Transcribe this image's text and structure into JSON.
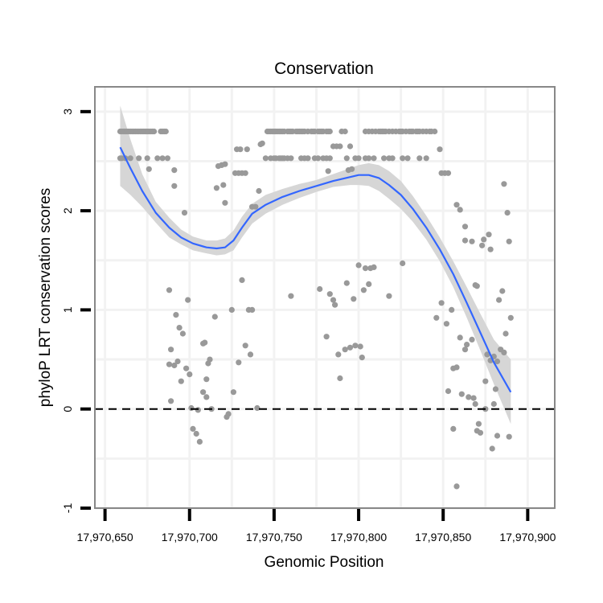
{
  "chart_data": {
    "type": "scatter",
    "title": "Conservation",
    "xlabel": "Genomic Position",
    "ylabel": "phyloP LRT conservation scores",
    "xlim": [
      17970644,
      17970916
    ],
    "ylim": [
      -1,
      3.25
    ],
    "x_ticks": [
      17970650,
      17970700,
      17970750,
      17970800,
      17970850,
      17970900
    ],
    "x_tick_labels": [
      "17,970,650",
      "17,970,700",
      "17,970,750",
      "17,970,800",
      "17,970,850",
      "17,970,900"
    ],
    "y_ticks": [
      -1,
      0,
      1,
      2,
      3
    ],
    "y_tick_labels": [
      "-1",
      "0",
      "1",
      "2",
      "3"
    ],
    "reference_line": {
      "y": 0,
      "style": "dashed"
    },
    "colors": {
      "points": "#999999",
      "smooth": "#3366ff",
      "ribbon": "#d6d6d6",
      "panel_border": "#888888",
      "grid": "#f2f2f2"
    },
    "points": [
      [
        17970659,
        2.8
      ],
      [
        17970660,
        2.8
      ],
      [
        17970661,
        2.8
      ],
      [
        17970662,
        2.8
      ],
      [
        17970663,
        2.8
      ],
      [
        17970664,
        2.8
      ],
      [
        17970665,
        2.8
      ],
      [
        17970666,
        2.8
      ],
      [
        17970667,
        2.8
      ],
      [
        17970668,
        2.8
      ],
      [
        17970669,
        2.8
      ],
      [
        17970670,
        2.8
      ],
      [
        17970671,
        2.8
      ],
      [
        17970672,
        2.8
      ],
      [
        17970673,
        2.8
      ],
      [
        17970674,
        2.8
      ],
      [
        17970675,
        2.8
      ],
      [
        17970676,
        2.8
      ],
      [
        17970677,
        2.8
      ],
      [
        17970678,
        2.8
      ],
      [
        17970679,
        2.8
      ],
      [
        17970683,
        2.8
      ],
      [
        17970684,
        2.8
      ],
      [
        17970685,
        2.8
      ],
      [
        17970686,
        2.8
      ],
      [
        17970659,
        2.53
      ],
      [
        17970660,
        2.53
      ],
      [
        17970662,
        2.53
      ],
      [
        17970665,
        2.53
      ],
      [
        17970670,
        2.53
      ],
      [
        17970675,
        2.53
      ],
      [
        17970681,
        2.53
      ],
      [
        17970684,
        2.53
      ],
      [
        17970687,
        2.53
      ],
      [
        17970676,
        2.42
      ],
      [
        17970691,
        2.41
      ],
      [
        17970691,
        2.25
      ],
      [
        17970697,
        1.98
      ],
      [
        17970688,
        1.2
      ],
      [
        17970699,
        1.1
      ],
      [
        17970692,
        0.95
      ],
      [
        17970694,
        0.82
      ],
      [
        17970696,
        0.76
      ],
      [
        17970689,
        0.6
      ],
      [
        17970688,
        0.45
      ],
      [
        17970691,
        0.44
      ],
      [
        17970693,
        0.48
      ],
      [
        17970698,
        0.41
      ],
      [
        17970700,
        0.35
      ],
      [
        17970695,
        0.28
      ],
      [
        17970689,
        0.08
      ],
      [
        17970701,
        0.01
      ],
      [
        17970705,
        -0.01
      ],
      [
        17970702,
        -0.2
      ],
      [
        17970704,
        -0.25
      ],
      [
        17970706,
        -0.33
      ],
      [
        17970708,
        0.66
      ],
      [
        17970709,
        0.67
      ],
      [
        17970710,
        0.3
      ],
      [
        17970711,
        0.46
      ],
      [
        17970712,
        0.5
      ],
      [
        17970708,
        0.17
      ],
      [
        17970710,
        0.12
      ],
      [
        17970713,
        0.0
      ],
      [
        17970715,
        0.93
      ],
      [
        17970717,
        2.45
      ],
      [
        17970719,
        2.46
      ],
      [
        17970721,
        2.47
      ],
      [
        17970716,
        2.23
      ],
      [
        17970720,
        2.26
      ],
      [
        17970721,
        2.08
      ],
      [
        17970723,
        -0.05
      ],
      [
        17970722,
        -0.08
      ],
      [
        17970725,
        1.0
      ],
      [
        17970726,
        0.17
      ],
      [
        17970727,
        2.38
      ],
      [
        17970729,
        2.38
      ],
      [
        17970731,
        2.38
      ],
      [
        17970733,
        2.38
      ],
      [
        17970728,
        2.62
      ],
      [
        17970730,
        2.62
      ],
      [
        17970734,
        2.62
      ],
      [
        17970729,
        0.47
      ],
      [
        17970731,
        1.3
      ],
      [
        17970733,
        0.64
      ],
      [
        17970736,
        0.55
      ],
      [
        17970735,
        1.0
      ],
      [
        17970737,
        2.04
      ],
      [
        17970739,
        2.04
      ],
      [
        17970737,
        1.0
      ],
      [
        17970740,
        0.01
      ],
      [
        17970741,
        2.2
      ],
      [
        17970742,
        2.67
      ],
      [
        17970743,
        2.68
      ],
      [
        17970745,
        2.53
      ],
      [
        17970746,
        2.8
      ],
      [
        17970747,
        2.8
      ],
      [
        17970748,
        2.8
      ],
      [
        17970749,
        2.8
      ],
      [
        17970750,
        2.8
      ],
      [
        17970751,
        2.8
      ],
      [
        17970752,
        2.8
      ],
      [
        17970753,
        2.8
      ],
      [
        17970754,
        2.8
      ],
      [
        17970755,
        2.8
      ],
      [
        17970756,
        2.8
      ],
      [
        17970758,
        2.8
      ],
      [
        17970759,
        2.8
      ],
      [
        17970760,
        2.8
      ],
      [
        17970761,
        2.8
      ],
      [
        17970763,
        2.8
      ],
      [
        17970764,
        2.8
      ],
      [
        17970765,
        2.8
      ],
      [
        17970766,
        2.8
      ],
      [
        17970767,
        2.8
      ],
      [
        17970768,
        2.8
      ],
      [
        17970770,
        2.8
      ],
      [
        17970772,
        2.8
      ],
      [
        17970773,
        2.8
      ],
      [
        17970774,
        2.8
      ],
      [
        17970776,
        2.8
      ],
      [
        17970777,
        2.8
      ],
      [
        17970778,
        2.8
      ],
      [
        17970779,
        2.8
      ],
      [
        17970781,
        2.8
      ],
      [
        17970782,
        2.8
      ],
      [
        17970783,
        2.8
      ],
      [
        17970748,
        2.53
      ],
      [
        17970750,
        2.53
      ],
      [
        17970751,
        2.53
      ],
      [
        17970753,
        2.53
      ],
      [
        17970754,
        2.53
      ],
      [
        17970755,
        2.53
      ],
      [
        17970756,
        2.53
      ],
      [
        17970758,
        2.53
      ],
      [
        17970760,
        2.53
      ],
      [
        17970766,
        2.53
      ],
      [
        17970768,
        2.53
      ],
      [
        17970770,
        2.53
      ],
      [
        17970774,
        2.53
      ],
      [
        17970776,
        2.53
      ],
      [
        17970779,
        2.53
      ],
      [
        17970781,
        2.53
      ],
      [
        17970783,
        2.53
      ],
      [
        17970782,
        2.4
      ],
      [
        17970760,
        1.14
      ],
      [
        17970777,
        1.21
      ],
      [
        17970783,
        1.16
      ],
      [
        17970785,
        1.1
      ],
      [
        17970786,
        1.05
      ],
      [
        17970781,
        0.73
      ],
      [
        17970788,
        0.55
      ],
      [
        17970789,
        0.31
      ],
      [
        17970792,
        0.6
      ],
      [
        17970793,
        1.27
      ],
      [
        17970785,
        2.65
      ],
      [
        17970787,
        2.65
      ],
      [
        17970789,
        2.65
      ],
      [
        17970790,
        2.8
      ],
      [
        17970792,
        2.8
      ],
      [
        17970794,
        2.41
      ],
      [
        17970796,
        2.42
      ],
      [
        17970793,
        2.53
      ],
      [
        17970795,
        2.65
      ],
      [
        17970795,
        0.62
      ],
      [
        17970797,
        1.11
      ],
      [
        17970798,
        0.64
      ],
      [
        17970800,
        1.45
      ],
      [
        17970801,
        0.63
      ],
      [
        17970802,
        0.52
      ],
      [
        17970803,
        1.2
      ],
      [
        17970804,
        1.42
      ],
      [
        17970806,
        1.26
      ],
      [
        17970807,
        1.42
      ],
      [
        17970809,
        1.43
      ],
      [
        17970798,
        2.53
      ],
      [
        17970800,
        2.53
      ],
      [
        17970804,
        2.53
      ],
      [
        17970806,
        2.53
      ],
      [
        17970809,
        2.53
      ],
      [
        17970815,
        2.53
      ],
      [
        17970818,
        2.53
      ],
      [
        17970820,
        2.53
      ],
      [
        17970826,
        2.53
      ],
      [
        17970829,
        2.53
      ],
      [
        17970836,
        2.53
      ],
      [
        17970840,
        2.53
      ],
      [
        17970804,
        2.8
      ],
      [
        17970806,
        2.8
      ],
      [
        17970808,
        2.8
      ],
      [
        17970810,
        2.8
      ],
      [
        17970812,
        2.8
      ],
      [
        17970813,
        2.8
      ],
      [
        17970814,
        2.8
      ],
      [
        17970815,
        2.8
      ],
      [
        17970816,
        2.8
      ],
      [
        17970818,
        2.8
      ],
      [
        17970820,
        2.8
      ],
      [
        17970822,
        2.8
      ],
      [
        17970824,
        2.8
      ],
      [
        17970825,
        2.8
      ],
      [
        17970826,
        2.8
      ],
      [
        17970828,
        2.8
      ],
      [
        17970830,
        2.8
      ],
      [
        17970831,
        2.8
      ],
      [
        17970832,
        2.8
      ],
      [
        17970834,
        2.8
      ],
      [
        17970835,
        2.8
      ],
      [
        17970836,
        2.8
      ],
      [
        17970838,
        2.8
      ],
      [
        17970840,
        2.8
      ],
      [
        17970842,
        2.8
      ],
      [
        17970843,
        2.8
      ],
      [
        17970845,
        2.8
      ],
      [
        17970818,
        1.14
      ],
      [
        17970826,
        1.47
      ],
      [
        17970846,
        0.92
      ],
      [
        17970848,
        2.62
      ],
      [
        17970849,
        2.38
      ],
      [
        17970851,
        2.38
      ],
      [
        17970853,
        2.38
      ],
      [
        17970849,
        1.07
      ],
      [
        17970852,
        0.86
      ],
      [
        17970853,
        0.18
      ],
      [
        17970855,
        1.0
      ],
      [
        17970856,
        0.41
      ],
      [
        17970856,
        -0.2
      ],
      [
        17970858,
        2.06
      ],
      [
        17970858,
        0.42
      ],
      [
        17970858,
        -0.78
      ],
      [
        17970860,
        2.01
      ],
      [
        17970860,
        0.72
      ],
      [
        17970861,
        0.15
      ],
      [
        17970863,
        1.84
      ],
      [
        17970863,
        1.7
      ],
      [
        17970863,
        0.6
      ],
      [
        17970864,
        0.65
      ],
      [
        17970865,
        0.12
      ],
      [
        17970867,
        1.69
      ],
      [
        17970867,
        0.7
      ],
      [
        17970868,
        0.11
      ],
      [
        17970869,
        0.05
      ],
      [
        17970869,
        1.25
      ],
      [
        17970870,
        -0.22
      ],
      [
        17970870,
        1.24
      ],
      [
        17970871,
        -0.15
      ],
      [
        17970872,
        -0.24
      ],
      [
        17970873,
        1.65
      ],
      [
        17970874,
        1.71
      ],
      [
        17970875,
        0.28
      ],
      [
        17970875,
        0.0
      ],
      [
        17970876,
        0.55
      ],
      [
        17970877,
        1.76
      ],
      [
        17970878,
        1.61
      ],
      [
        17970878,
        0.49
      ],
      [
        17970879,
        -0.4
      ],
      [
        17970880,
        0.53
      ],
      [
        17970880,
        0.05
      ],
      [
        17970881,
        0.2
      ],
      [
        17970882,
        -0.27
      ],
      [
        17970882,
        0.48
      ],
      [
        17970883,
        1.1
      ],
      [
        17970884,
        0.6
      ],
      [
        17970885,
        1.19
      ],
      [
        17970886,
        0.57
      ],
      [
        17970886,
        2.27
      ],
      [
        17970887,
        0.76
      ],
      [
        17970888,
        1.98
      ],
      [
        17970889,
        1.69
      ],
      [
        17970889,
        -0.28
      ],
      [
        17970890,
        0.92
      ]
    ],
    "smooth": [
      [
        17970659,
        2.64
      ],
      [
        17970665,
        2.43
      ],
      [
        17970672,
        2.2
      ],
      [
        17970680,
        1.98
      ],
      [
        17970688,
        1.83
      ],
      [
        17970695,
        1.73
      ],
      [
        17970702,
        1.67
      ],
      [
        17970710,
        1.63
      ],
      [
        17970716,
        1.62
      ],
      [
        17970721,
        1.63
      ],
      [
        17970726,
        1.7
      ],
      [
        17970731,
        1.83
      ],
      [
        17970737,
        1.97
      ],
      [
        17970745,
        2.06
      ],
      [
        17970755,
        2.14
      ],
      [
        17970765,
        2.2
      ],
      [
        17970775,
        2.25
      ],
      [
        17970785,
        2.3
      ],
      [
        17970795,
        2.34
      ],
      [
        17970800,
        2.36
      ],
      [
        17970806,
        2.36
      ],
      [
        17970812,
        2.33
      ],
      [
        17970818,
        2.26
      ],
      [
        17970825,
        2.16
      ],
      [
        17970832,
        2.02
      ],
      [
        17970840,
        1.83
      ],
      [
        17970848,
        1.61
      ],
      [
        17970856,
        1.36
      ],
      [
        17970864,
        1.07
      ],
      [
        17970872,
        0.77
      ],
      [
        17970880,
        0.47
      ],
      [
        17970890,
        0.17
      ]
    ],
    "ribbon_lower": [
      [
        17970659,
        2.25
      ],
      [
        17970665,
        2.16
      ],
      [
        17970672,
        2.04
      ],
      [
        17970680,
        1.88
      ],
      [
        17970688,
        1.73
      ],
      [
        17970695,
        1.66
      ],
      [
        17970702,
        1.6
      ],
      [
        17970710,
        1.57
      ],
      [
        17970716,
        1.55
      ],
      [
        17970721,
        1.56
      ],
      [
        17970726,
        1.6
      ],
      [
        17970731,
        1.73
      ],
      [
        17970737,
        1.87
      ],
      [
        17970745,
        1.97
      ],
      [
        17970755,
        2.06
      ],
      [
        17970765,
        2.13
      ],
      [
        17970775,
        2.19
      ],
      [
        17970785,
        2.24
      ],
      [
        17970795,
        2.26
      ],
      [
        17970800,
        2.26
      ],
      [
        17970806,
        2.25
      ],
      [
        17970812,
        2.2
      ],
      [
        17970818,
        2.12
      ],
      [
        17970825,
        2.02
      ],
      [
        17970832,
        1.89
      ],
      [
        17970840,
        1.71
      ],
      [
        17970848,
        1.49
      ],
      [
        17970856,
        1.23
      ],
      [
        17970864,
        0.92
      ],
      [
        17970872,
        0.59
      ],
      [
        17970880,
        0.25
      ],
      [
        17970890,
        -0.15
      ]
    ],
    "ribbon_upper": [
      [
        17970659,
        3.06
      ],
      [
        17970665,
        2.72
      ],
      [
        17970672,
        2.37
      ],
      [
        17970680,
        2.09
      ],
      [
        17970688,
        1.93
      ],
      [
        17970695,
        1.81
      ],
      [
        17970702,
        1.74
      ],
      [
        17970710,
        1.7
      ],
      [
        17970716,
        1.7
      ],
      [
        17970721,
        1.72
      ],
      [
        17970726,
        1.8
      ],
      [
        17970731,
        1.94
      ],
      [
        17970737,
        2.07
      ],
      [
        17970745,
        2.16
      ],
      [
        17970755,
        2.22
      ],
      [
        17970765,
        2.27
      ],
      [
        17970775,
        2.31
      ],
      [
        17970785,
        2.37
      ],
      [
        17970795,
        2.43
      ],
      [
        17970800,
        2.46
      ],
      [
        17970806,
        2.48
      ],
      [
        17970812,
        2.46
      ],
      [
        17970818,
        2.4
      ],
      [
        17970825,
        2.3
      ],
      [
        17970832,
        2.15
      ],
      [
        17970840,
        1.95
      ],
      [
        17970848,
        1.73
      ],
      [
        17970856,
        1.49
      ],
      [
        17970864,
        1.23
      ],
      [
        17970872,
        0.96
      ],
      [
        17970880,
        0.7
      ],
      [
        17970890,
        0.5
      ]
    ]
  }
}
